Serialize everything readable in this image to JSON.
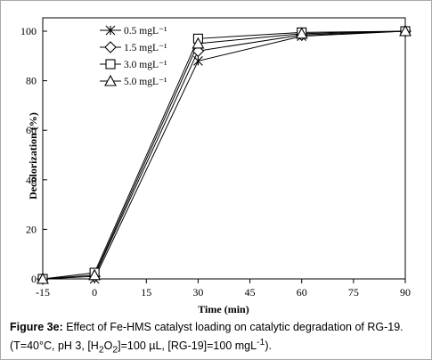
{
  "chart_data": {
    "type": "line",
    "xlabel": "Time (min)",
    "ylabel": "Decolorization (%)",
    "x_ticks": [
      "-15",
      "0",
      "15",
      "30",
      "45",
      "60",
      "75",
      "90"
    ],
    "y_ticks": [
      "0",
      "20",
      "40",
      "60",
      "80",
      "100"
    ],
    "xlim": [
      -15,
      90
    ],
    "ylim": [
      0,
      100
    ],
    "grid": false,
    "legend_position": "top-left",
    "x": [
      -15,
      0,
      30,
      60,
      90
    ],
    "series": [
      {
        "name": "0.5 mgL⁻¹",
        "marker": "asterisk",
        "values": [
          0,
          0,
          88,
          98,
          100
        ]
      },
      {
        "name": "1.5 mgL⁻¹",
        "marker": "diamond",
        "values": [
          0,
          1,
          92,
          98.5,
          100
        ]
      },
      {
        "name": "3.0 mgL⁻¹",
        "marker": "square",
        "values": [
          0,
          2.5,
          97,
          99.5,
          100
        ]
      },
      {
        "name": "5.0 mgL⁻¹",
        "marker": "triangle",
        "values": [
          0,
          1.5,
          95,
          99,
          100
        ]
      }
    ]
  },
  "caption": {
    "label": "Figure 3e:",
    "text": " Effect of Fe-HMS catalyst loading on catalytic degradation of RG-19.",
    "line2_a": "(T=40°C, pH 3, [H",
    "sub_2a": "2",
    "line2_b": "O",
    "sub_2b": "2",
    "line2_c": "]=100 µL, [RG-19]=100 mgL",
    "sup": "-1",
    "line2_d": ")."
  }
}
